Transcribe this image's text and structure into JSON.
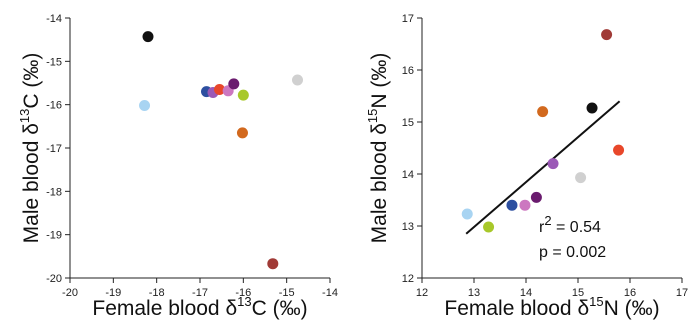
{
  "chart_data": [
    {
      "type": "scatter",
      "xlabel": {
        "pre": "Female blood δ",
        "sup": "13",
        "post": "C (‰)"
      },
      "ylabel": {
        "pre": "Male blood δ",
        "sup": "13",
        "post": "C (‰)"
      },
      "xlim": [
        -20,
        -14
      ],
      "ylim": [
        -20,
        -14
      ],
      "xticks": [
        "-20",
        "-19",
        "-18",
        "-17",
        "-16",
        "-15",
        "-14"
      ],
      "yticks": [
        "-20",
        "-19",
        "-18",
        "-17",
        "-16",
        "-15",
        "-14"
      ],
      "grid": false,
      "points": [
        {
          "x": -18.2,
          "y": -14.43,
          "color": "#111111"
        },
        {
          "x": -18.28,
          "y": -16.02,
          "color": "#a8d4f2"
        },
        {
          "x": -16.85,
          "y": -15.7,
          "color": "#2d4fa0"
        },
        {
          "x": -16.7,
          "y": -15.72,
          "color": "#9b59b6"
        },
        {
          "x": -16.55,
          "y": -15.65,
          "color": "#e8472a"
        },
        {
          "x": -16.35,
          "y": -15.68,
          "color": "#cc77c0"
        },
        {
          "x": -16.22,
          "y": -15.52,
          "color": "#6a1b6e"
        },
        {
          "x": -16.0,
          "y": -15.78,
          "color": "#a8c82a"
        },
        {
          "x": -16.02,
          "y": -16.65,
          "color": "#d2691e"
        },
        {
          "x": -14.75,
          "y": -15.43,
          "color": "#d0d0d0"
        },
        {
          "x": -15.32,
          "y": -19.67,
          "color": "#a03a36"
        }
      ]
    },
    {
      "type": "scatter",
      "xlabel": {
        "pre": "Female blood δ",
        "sup": "15",
        "post": "N (‰)"
      },
      "ylabel": {
        "pre": "Male blood δ",
        "sup": "15",
        "post": "N (‰)"
      },
      "xlim": [
        12,
        17
      ],
      "ylim": [
        12,
        17
      ],
      "xticks": [
        "12",
        "13",
        "14",
        "15",
        "16",
        "17"
      ],
      "yticks": [
        "12",
        "13",
        "14",
        "15",
        "16",
        "17"
      ],
      "grid": false,
      "points": [
        {
          "x": 12.87,
          "y": 13.23,
          "color": "#a8d4f2"
        },
        {
          "x": 13.28,
          "y": 12.98,
          "color": "#a8c82a"
        },
        {
          "x": 13.73,
          "y": 13.4,
          "color": "#2d4fa0"
        },
        {
          "x": 13.98,
          "y": 13.4,
          "color": "#cc77c0"
        },
        {
          "x": 14.2,
          "y": 13.55,
          "color": "#6a1b6e"
        },
        {
          "x": 14.52,
          "y": 14.2,
          "color": "#9b59b6"
        },
        {
          "x": 14.32,
          "y": 15.2,
          "color": "#d2691e"
        },
        {
          "x": 15.05,
          "y": 13.93,
          "color": "#d0d0d0"
        },
        {
          "x": 15.27,
          "y": 15.27,
          "color": "#111111"
        },
        {
          "x": 15.78,
          "y": 14.46,
          "color": "#e8472a"
        },
        {
          "x": 15.55,
          "y": 16.68,
          "color": "#a03a36"
        }
      ],
      "regression": {
        "x": [
          12.85,
          15.8
        ],
        "y": [
          12.85,
          15.4
        ]
      },
      "annotations": {
        "r2_label": "r",
        "r2_sup": "2",
        "r2_value": " = 0.54",
        "p_text": "p = 0.002"
      }
    }
  ]
}
